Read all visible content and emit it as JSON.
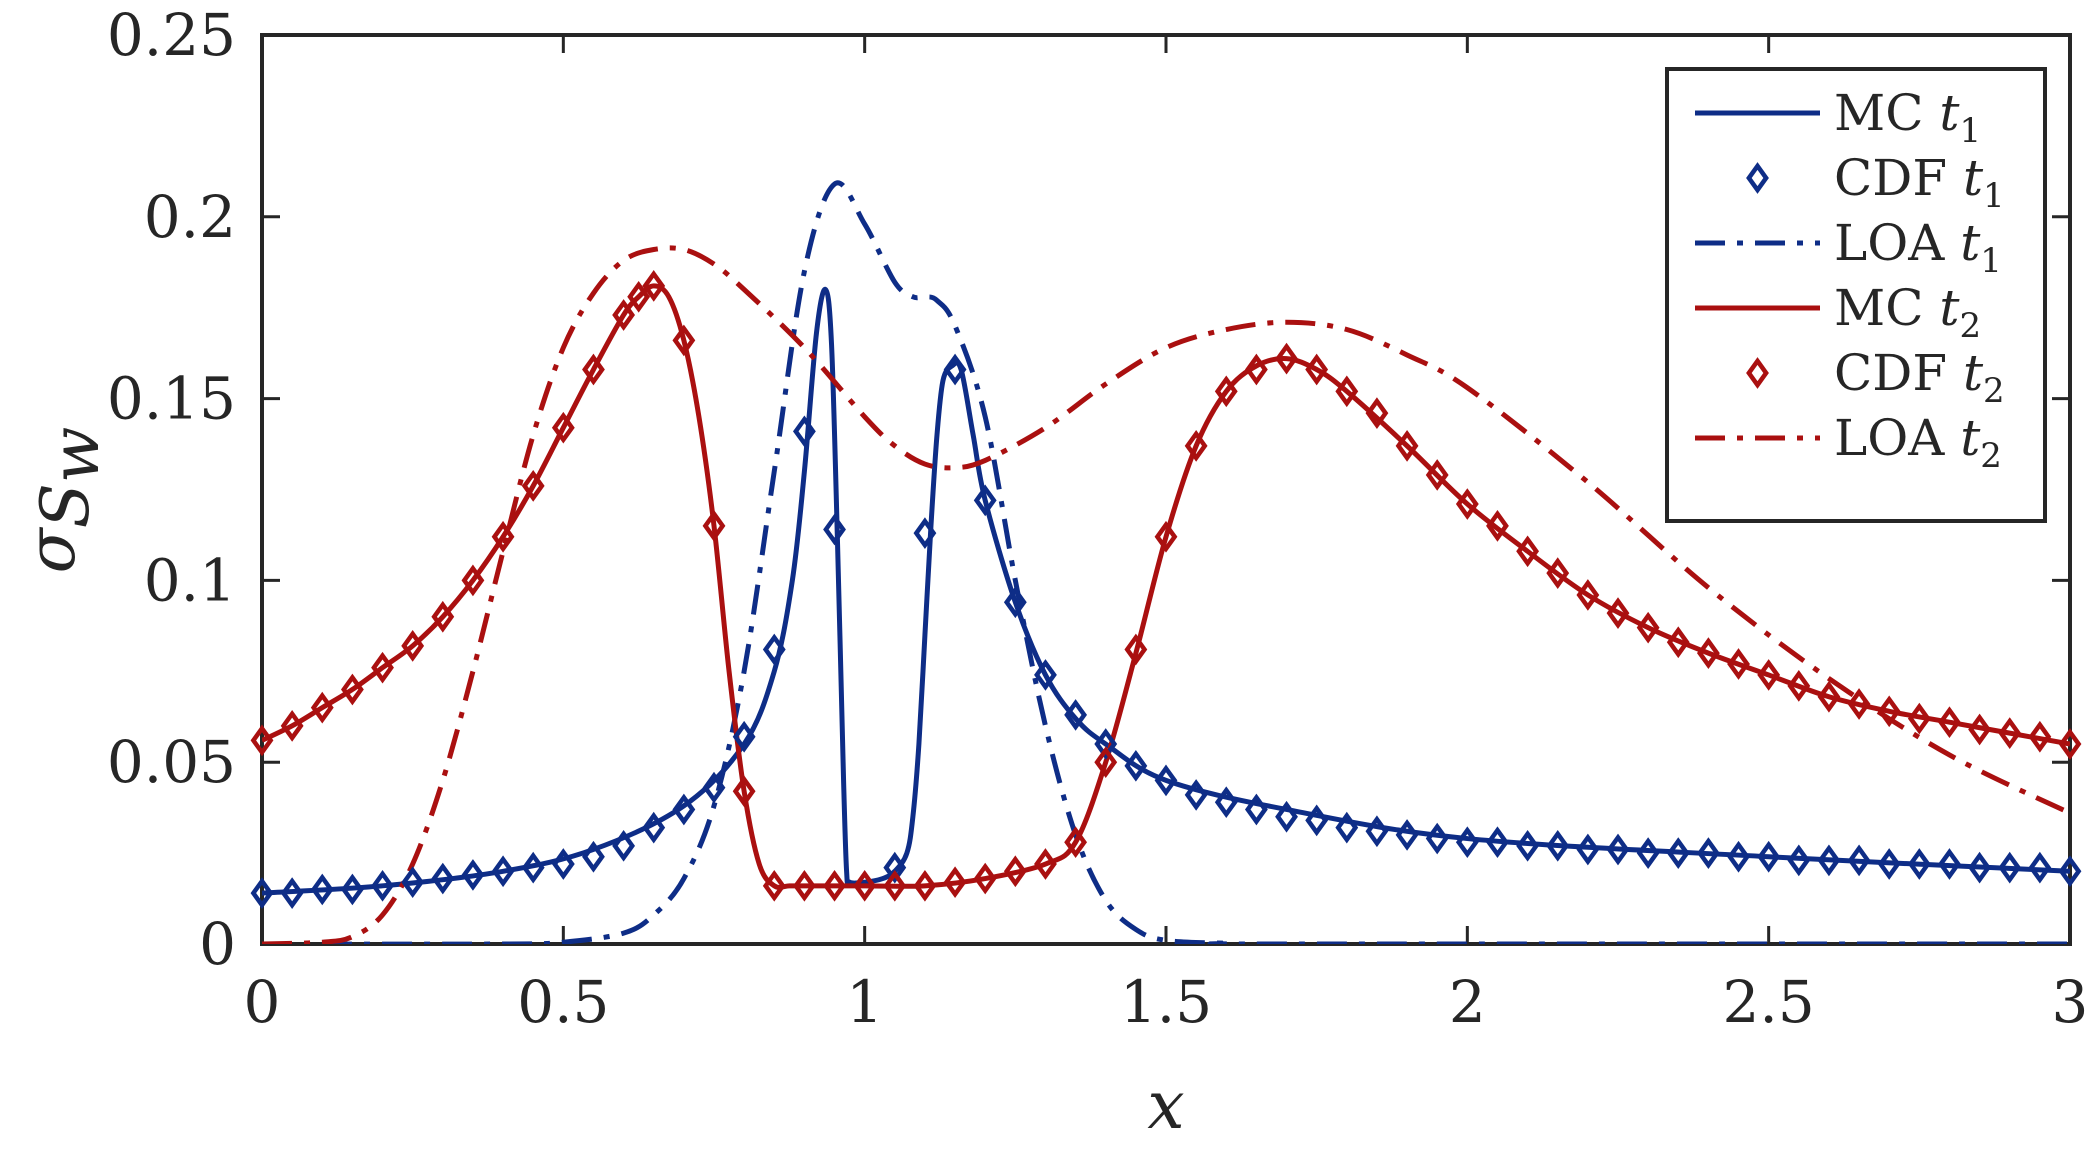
{
  "colors": {
    "series_t1": "#0e2d87",
    "series_t2": "#aa1010",
    "axes": "#262626",
    "background": "#ffffff"
  },
  "chart_data": {
    "type": "line",
    "xlabel": "x",
    "ylabel": "σ",
    "ylabel_subscript": "S",
    "ylabel_subsubscript": "w",
    "xlim": [
      0,
      3
    ],
    "ylim": [
      0,
      0.25
    ],
    "xticks": [
      0,
      0.5,
      1,
      1.5,
      2,
      2.5,
      3
    ],
    "xtick_labels": [
      "0",
      "0.5",
      "1",
      "1.5",
      "2",
      "2.5",
      "3"
    ],
    "yticks": [
      0,
      0.05,
      0.1,
      0.15,
      0.2,
      0.25
    ],
    "ytick_labels": [
      "0",
      "0.05",
      "0.1",
      "0.15",
      "0.2",
      "0.25"
    ],
    "grid": false,
    "legend_position": "top-right",
    "series": [
      {
        "name": "MC t1",
        "label_main": "MC",
        "label_var": "t",
        "label_sub": "1",
        "color_key": "series_t1",
        "style": "solid",
        "marker": "none",
        "x": [
          0,
          0.2,
          0.4,
          0.55,
          0.7,
          0.8,
          0.85,
          0.88,
          0.9,
          0.92,
          0.935,
          0.945,
          0.955,
          0.965,
          0.97,
          0.975,
          1.0,
          1.03,
          1.05,
          1.07,
          1.08,
          1.09,
          1.1,
          1.11,
          1.12,
          1.13,
          1.145,
          1.16,
          1.18,
          1.2,
          1.25,
          1.3,
          1.35,
          1.4,
          1.5,
          1.7,
          2.0,
          2.5,
          3.0
        ],
        "y": [
          0.014,
          0.016,
          0.02,
          0.026,
          0.038,
          0.055,
          0.075,
          0.1,
          0.13,
          0.168,
          0.18,
          0.165,
          0.11,
          0.045,
          0.02,
          0.017,
          0.017,
          0.018,
          0.02,
          0.025,
          0.035,
          0.055,
          0.085,
          0.115,
          0.14,
          0.155,
          0.159,
          0.158,
          0.14,
          0.122,
          0.094,
          0.074,
          0.062,
          0.055,
          0.045,
          0.037,
          0.029,
          0.024,
          0.02
        ]
      },
      {
        "name": "CDF t1",
        "label_main": "CDF",
        "label_var": "t",
        "label_sub": "1",
        "color_key": "series_t1",
        "style": "none",
        "marker": "diamond",
        "x": [
          0,
          0.05,
          0.1,
          0.15,
          0.2,
          0.25,
          0.3,
          0.35,
          0.4,
          0.45,
          0.5,
          0.55,
          0.6,
          0.65,
          0.7,
          0.75,
          0.8,
          0.85,
          0.9,
          0.95,
          1.05,
          1.1,
          1.15,
          1.2,
          1.25,
          1.3,
          1.35,
          1.4,
          1.45,
          1.5,
          1.55,
          1.6,
          1.65,
          1.7,
          1.75,
          1.8,
          1.85,
          1.9,
          1.95,
          2.0,
          2.05,
          2.1,
          2.15,
          2.2,
          2.25,
          2.3,
          2.35,
          2.4,
          2.45,
          2.5,
          2.55,
          2.6,
          2.65,
          2.7,
          2.75,
          2.8,
          2.85,
          2.9,
          2.95,
          3.0
        ],
        "y": [
          0.014,
          0.014,
          0.015,
          0.015,
          0.016,
          0.017,
          0.018,
          0.019,
          0.02,
          0.021,
          0.022,
          0.024,
          0.027,
          0.032,
          0.037,
          0.043,
          0.057,
          0.081,
          0.141,
          0.114,
          0.021,
          0.113,
          0.158,
          0.122,
          0.094,
          0.074,
          0.063,
          0.055,
          0.049,
          0.045,
          0.041,
          0.039,
          0.037,
          0.035,
          0.034,
          0.032,
          0.031,
          0.03,
          0.029,
          0.028,
          0.028,
          0.027,
          0.027,
          0.026,
          0.026,
          0.025,
          0.025,
          0.025,
          0.024,
          0.024,
          0.023,
          0.023,
          0.023,
          0.022,
          0.022,
          0.022,
          0.021,
          0.021,
          0.021,
          0.02
        ]
      },
      {
        "name": "LOA t1",
        "label_main": "LOA",
        "label_var": "t",
        "label_sub": "1",
        "color_key": "series_t1",
        "style": "dashdot",
        "marker": "none",
        "x": [
          0,
          0.4,
          0.5,
          0.6,
          0.65,
          0.7,
          0.75,
          0.8,
          0.85,
          0.9,
          0.95,
          1.0,
          1.05,
          1.08,
          1.1,
          1.12,
          1.15,
          1.2,
          1.25,
          1.3,
          1.35,
          1.4,
          1.45,
          1.5,
          1.6,
          1.7,
          3.0
        ],
        "y": [
          0,
          0,
          0.0005,
          0.003,
          0.008,
          0.018,
          0.038,
          0.075,
          0.13,
          0.185,
          0.209,
          0.198,
          0.182,
          0.178,
          0.178,
          0.177,
          0.17,
          0.145,
          0.1,
          0.06,
          0.03,
          0.012,
          0.004,
          0.001,
          0.0002,
          0,
          0
        ]
      },
      {
        "name": "MC t2",
        "label_main": "MC",
        "label_var": "t",
        "label_sub": "2",
        "color_key": "series_t2",
        "style": "solid",
        "marker": "none",
        "x": [
          0,
          0.05,
          0.1,
          0.15,
          0.2,
          0.25,
          0.3,
          0.35,
          0.4,
          0.45,
          0.5,
          0.55,
          0.6,
          0.625,
          0.65,
          0.675,
          0.7,
          0.725,
          0.75,
          0.775,
          0.8,
          0.825,
          0.85,
          0.875,
          0.9,
          1.0,
          1.1,
          1.2,
          1.3,
          1.35,
          1.4,
          1.45,
          1.5,
          1.55,
          1.6,
          1.65,
          1.7,
          1.75,
          1.8,
          1.9,
          2.0,
          2.1,
          2.2,
          2.3,
          2.4,
          2.5,
          2.6,
          2.7,
          2.8,
          2.9,
          3.0
        ],
        "y": [
          0.056,
          0.06,
          0.065,
          0.07,
          0.076,
          0.082,
          0.09,
          0.1,
          0.112,
          0.126,
          0.142,
          0.158,
          0.173,
          0.178,
          0.181,
          0.178,
          0.166,
          0.145,
          0.115,
          0.075,
          0.042,
          0.022,
          0.016,
          0.016,
          0.016,
          0.016,
          0.016,
          0.018,
          0.022,
          0.028,
          0.05,
          0.08,
          0.112,
          0.137,
          0.152,
          0.159,
          0.161,
          0.158,
          0.152,
          0.137,
          0.121,
          0.108,
          0.096,
          0.087,
          0.08,
          0.074,
          0.068,
          0.064,
          0.061,
          0.058,
          0.055
        ]
      },
      {
        "name": "CDF t2",
        "label_main": "CDF",
        "label_var": "t",
        "label_sub": "2",
        "color_key": "series_t2",
        "style": "none",
        "marker": "diamond",
        "x": [
          0,
          0.05,
          0.1,
          0.15,
          0.2,
          0.25,
          0.3,
          0.35,
          0.4,
          0.45,
          0.5,
          0.55,
          0.6,
          0.625,
          0.65,
          0.7,
          0.75,
          0.8,
          0.85,
          0.9,
          0.95,
          1.0,
          1.05,
          1.1,
          1.15,
          1.2,
          1.25,
          1.3,
          1.35,
          1.4,
          1.45,
          1.5,
          1.55,
          1.6,
          1.65,
          1.7,
          1.75,
          1.8,
          1.85,
          1.9,
          1.95,
          2.0,
          2.05,
          2.1,
          2.15,
          2.2,
          2.25,
          2.3,
          2.35,
          2.4,
          2.45,
          2.5,
          2.55,
          2.6,
          2.65,
          2.7,
          2.75,
          2.8,
          2.85,
          2.9,
          2.95,
          3.0
        ],
        "y": [
          0.056,
          0.06,
          0.065,
          0.07,
          0.076,
          0.082,
          0.09,
          0.1,
          0.112,
          0.126,
          0.142,
          0.158,
          0.173,
          0.178,
          0.181,
          0.166,
          0.115,
          0.042,
          0.016,
          0.016,
          0.016,
          0.016,
          0.016,
          0.016,
          0.017,
          0.018,
          0.02,
          0.022,
          0.028,
          0.05,
          0.081,
          0.112,
          0.137,
          0.152,
          0.158,
          0.161,
          0.158,
          0.152,
          0.146,
          0.137,
          0.129,
          0.121,
          0.115,
          0.108,
          0.102,
          0.096,
          0.091,
          0.087,
          0.083,
          0.08,
          0.077,
          0.074,
          0.071,
          0.068,
          0.066,
          0.064,
          0.062,
          0.061,
          0.059,
          0.058,
          0.057,
          0.055
        ]
      },
      {
        "name": "LOA t2",
        "label_main": "LOA",
        "label_var": "t",
        "label_sub": "2",
        "color_key": "series_t2",
        "style": "dashdot",
        "marker": "none",
        "x": [
          0,
          0.1,
          0.15,
          0.2,
          0.25,
          0.3,
          0.35,
          0.4,
          0.45,
          0.5,
          0.55,
          0.6,
          0.65,
          0.7,
          0.75,
          0.8,
          0.9,
          1.0,
          1.05,
          1.1,
          1.15,
          1.2,
          1.3,
          1.4,
          1.5,
          1.6,
          1.7,
          1.8,
          1.9,
          2.0,
          2.2,
          2.4,
          2.6,
          2.8,
          3.0
        ],
        "y": [
          0,
          0.0005,
          0.002,
          0.008,
          0.022,
          0.045,
          0.075,
          0.108,
          0.14,
          0.164,
          0.179,
          0.188,
          0.191,
          0.191,
          0.187,
          0.18,
          0.164,
          0.145,
          0.137,
          0.132,
          0.131,
          0.133,
          0.142,
          0.154,
          0.164,
          0.169,
          0.171,
          0.169,
          0.162,
          0.153,
          0.127,
          0.098,
          0.073,
          0.052,
          0.036
        ]
      }
    ]
  }
}
